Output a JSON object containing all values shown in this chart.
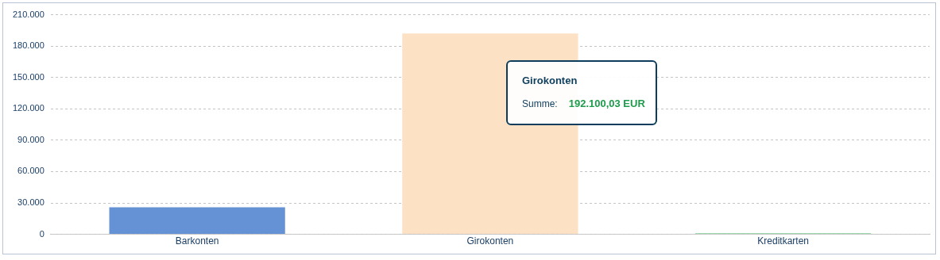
{
  "chart_data": {
    "type": "bar",
    "categories": [
      "Barkonten",
      "Girokonten",
      "Kreditkarten"
    ],
    "values": [
      25800,
      192100.03,
      1000
    ],
    "colors": [
      "#6592d4",
      "#fce1c4",
      "#7ccf94"
    ],
    "ylim": [
      0,
      210000
    ],
    "yticks": [
      {
        "value": 0,
        "label": "0"
      },
      {
        "value": 30000,
        "label": "30.000"
      },
      {
        "value": 60000,
        "label": "60.000"
      },
      {
        "value": 90000,
        "label": "90.000"
      },
      {
        "value": 120000,
        "label": "120.000"
      },
      {
        "value": 150000,
        "label": "150.000"
      },
      {
        "value": 180000,
        "label": "180.000"
      },
      {
        "value": 210000,
        "label": "210.000"
      }
    ],
    "grid": "y",
    "annotations": [
      "Girokonten",
      "Summe:",
      "192.100,03 EUR"
    ]
  }
}
